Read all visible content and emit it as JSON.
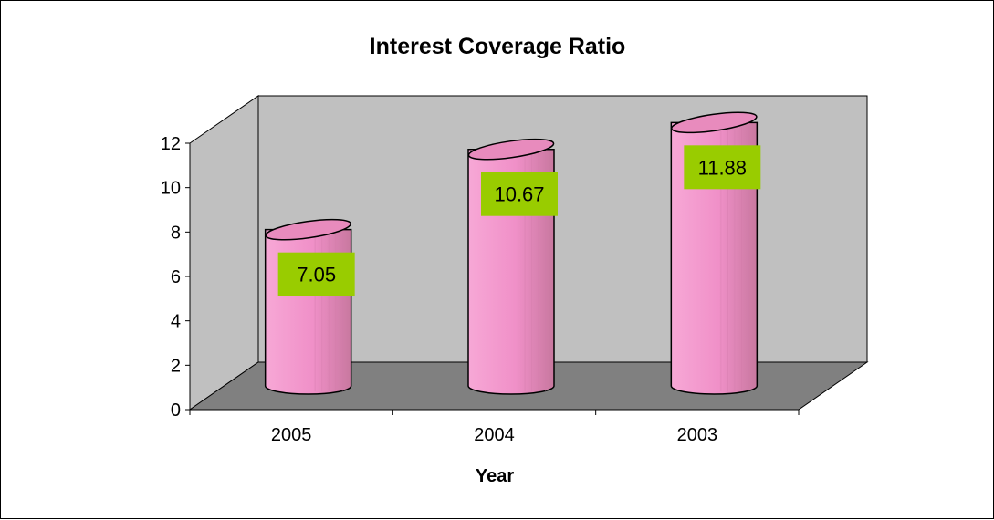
{
  "chart_data": {
    "type": "bar",
    "style": "3d-cylinder",
    "title": "Interest Coverage Ratio",
    "xlabel": "Year",
    "ylabel": "",
    "categories": [
      "2005",
      "2004",
      "2003"
    ],
    "series": [
      {
        "values": [
          7.05,
          10.67,
          11.88
        ]
      }
    ],
    "data_labels": [
      "7.05",
      "10.67",
      "11.88"
    ],
    "ylim": [
      0,
      12
    ],
    "yticks": [
      "0",
      "2",
      "4",
      "6",
      "8",
      "10",
      "12"
    ],
    "grid": false,
    "legend": "none",
    "colors": {
      "bar": "#f48fc8",
      "bar_shade": "#d07aa8",
      "bar_top": "#e88bbd",
      "data_label_bg": "#99cc00",
      "back_wall": "#c0c0c0",
      "side_wall": "#c0c0c0",
      "floor": "#808080"
    }
  }
}
